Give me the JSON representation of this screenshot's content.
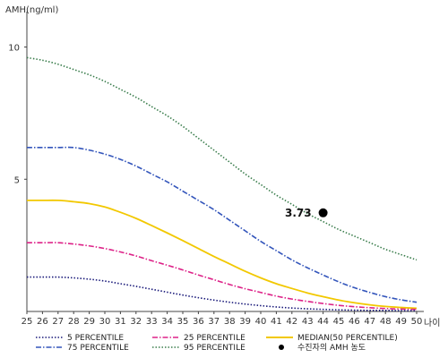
{
  "chart_data": {
    "type": "line",
    "ylabel": "AMH(ng/ml)",
    "xlabel": "나이",
    "xlim": [
      25,
      50
    ],
    "ylim": [
      0,
      11
    ],
    "x_ticks": [
      25,
      26,
      27,
      28,
      29,
      30,
      31,
      32,
      33,
      34,
      35,
      36,
      37,
      38,
      39,
      40,
      41,
      42,
      43,
      44,
      45,
      46,
      47,
      48,
      49,
      50
    ],
    "y_ticks": [
      5,
      10
    ],
    "x": [
      25,
      26,
      27,
      28,
      29,
      30,
      31,
      32,
      33,
      34,
      35,
      36,
      37,
      38,
      39,
      40,
      41,
      42,
      43,
      44,
      45,
      46,
      47,
      48,
      49,
      50
    ],
    "series": [
      {
        "name": "95 PERCENTILE",
        "color": "#3a7d4c",
        "dash": "1.5,2",
        "values": [
          9.6,
          9.5,
          9.35,
          9.15,
          8.95,
          8.7,
          8.4,
          8.1,
          7.75,
          7.4,
          7.0,
          6.55,
          6.1,
          5.65,
          5.2,
          4.8,
          4.4,
          4.05,
          3.7,
          3.4,
          3.1,
          2.85,
          2.6,
          2.35,
          2.15,
          1.95
        ]
      },
      {
        "name": "75 PERCENTILE",
        "color": "#3355bb",
        "dash": "6,2,1.5,2",
        "values": [
          6.2,
          6.2,
          6.2,
          6.2,
          6.1,
          5.95,
          5.75,
          5.5,
          5.2,
          4.9,
          4.55,
          4.2,
          3.85,
          3.45,
          3.05,
          2.65,
          2.3,
          1.95,
          1.65,
          1.38,
          1.12,
          0.9,
          0.72,
          0.56,
          0.44,
          0.35
        ]
      },
      {
        "name": "MEDIAN(50 PERCENTILE)",
        "color": "#f2c800",
        "dash": "",
        "values": [
          4.2,
          4.2,
          4.2,
          4.15,
          4.08,
          3.95,
          3.75,
          3.52,
          3.25,
          2.97,
          2.68,
          2.38,
          2.08,
          1.8,
          1.52,
          1.27,
          1.05,
          0.87,
          0.7,
          0.56,
          0.43,
          0.33,
          0.25,
          0.19,
          0.15,
          0.12
        ]
      },
      {
        "name": "25 PERCENTILE",
        "color": "#dd2288",
        "dash": "6,2,1.5,2",
        "values": [
          2.6,
          2.6,
          2.6,
          2.55,
          2.48,
          2.38,
          2.25,
          2.1,
          1.92,
          1.75,
          1.57,
          1.38,
          1.2,
          1.02,
          0.86,
          0.72,
          0.58,
          0.47,
          0.38,
          0.3,
          0.23,
          0.18,
          0.14,
          0.11,
          0.09,
          0.08
        ]
      },
      {
        "name": "5 PERCENTILE",
        "color": "#1a1a7a",
        "dash": "1.5,2",
        "values": [
          1.3,
          1.3,
          1.3,
          1.27,
          1.22,
          1.15,
          1.05,
          0.95,
          0.84,
          0.73,
          0.62,
          0.52,
          0.43,
          0.35,
          0.28,
          0.22,
          0.17,
          0.13,
          0.1,
          0.08,
          0.06,
          0.05,
          0.04,
          0.04,
          0.03,
          0.03
        ]
      }
    ],
    "marker": {
      "name": "수진자의 AMH 농도",
      "x": 44,
      "y": 3.73,
      "label": "3.73"
    },
    "legend": {
      "placement": "bottom",
      "entries": [
        {
          "label": "5 PERCENTILE",
          "color": "#1a1a7a",
          "dash": "1.5,2",
          "kind": "line"
        },
        {
          "label": "25 PERCENTILE",
          "color": "#dd2288",
          "dash": "6,2,1.5,2",
          "kind": "line"
        },
        {
          "label": "MEDIAN(50 PERCENTILE)",
          "color": "#f2c800",
          "dash": "",
          "kind": "line"
        },
        {
          "label": "75 PERCENTILE",
          "color": "#3355bb",
          "dash": "6,2,1.5,2",
          "kind": "line"
        },
        {
          "label": "95 PERCENTILE",
          "color": "#3a7d4c",
          "dash": "1.5,2",
          "kind": "line"
        },
        {
          "label": "수진자의 AMH 농도",
          "color": "#000000",
          "dash": "",
          "kind": "marker"
        }
      ]
    }
  }
}
